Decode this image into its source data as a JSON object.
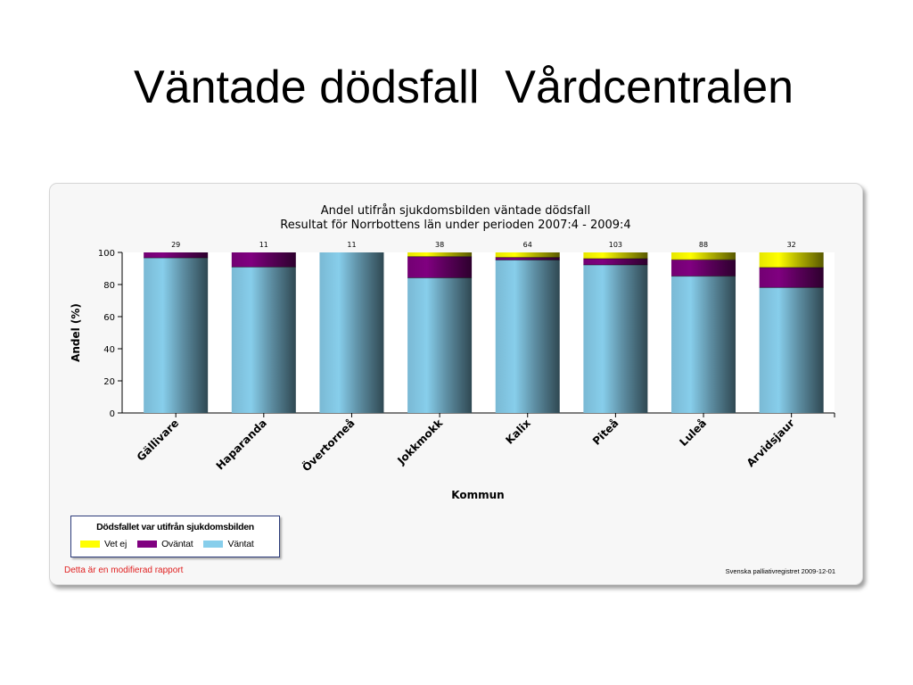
{
  "slide": {
    "title": "Väntade dödsfall  Vårdcentralen"
  },
  "report": {
    "legend_title": "Dödsfallet var utifrån sjukdomsbilden",
    "note_left": "Detta är en modifierad rapport",
    "note_right": "Svenska palliativregistret 2009-12-01"
  },
  "chart_data": {
    "type": "bar",
    "stacked": true,
    "title": "Andel utifrån sjukdomsbilden väntade dödsfall",
    "subtitle": "Resultat för Norrbottens län under perioden 2007:4 - 2009:4",
    "xlabel": "Kommun",
    "ylabel": "Andel (%)",
    "ylim": [
      0,
      100
    ],
    "yticks": [
      0,
      20,
      40,
      60,
      80,
      100
    ],
    "grid": false,
    "legend_position": "bottom-left",
    "categories": [
      "Gällivare",
      "Haparanda",
      "Övertorneå",
      "Jokkmokk",
      "Kalix",
      "Piteå",
      "Luleå",
      "Arvidsjaur"
    ],
    "counts": [
      "29",
      "11",
      "11",
      "38",
      "64",
      "103",
      "88",
      "32"
    ],
    "series": [
      {
        "name": "Väntat",
        "color": "#87ceeb",
        "values": [
          96.6,
          90.9,
          100,
          84.2,
          95.3,
          92.2,
          85.2,
          78.1
        ]
      },
      {
        "name": "Oväntat",
        "color": "#800080",
        "values": [
          3.4,
          9.1,
          0,
          13.2,
          1.6,
          3.9,
          10.2,
          12.5
        ]
      },
      {
        "name": "Vet ej",
        "color": "#ffff00",
        "values": [
          0,
          0,
          0,
          2.6,
          3.1,
          3.9,
          4.6,
          9.4
        ]
      }
    ]
  }
}
